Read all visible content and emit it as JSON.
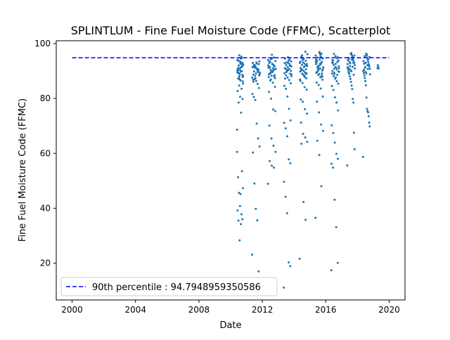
{
  "chart_data": {
    "type": "scatter",
    "title": "SPLINTLUM - Fine Fuel Moisture Code (FFMC), Scatterplot",
    "xlabel": "Date",
    "ylabel": "Fine Fuel Moisture Code (FFMC)",
    "xlim": [
      1999.0,
      2021.0
    ],
    "ylim": [
      6.6,
      101.0
    ],
    "x_ticks": [
      "2000",
      "2004",
      "2008",
      "2012",
      "2016",
      "2020"
    ],
    "y_ticks": [
      "20",
      "40",
      "60",
      "80",
      "100"
    ],
    "grid": false,
    "legend_position": "lower-left",
    "series": [
      {
        "color": "#1f77b4",
        "marker": "dot",
        "seasons": [
          {
            "start": 2010.4,
            "end": 2010.8,
            "values": [
              60.5,
              34.2,
              35.5,
              36.0,
              40.8,
              39.2,
              37.8,
              45.6,
              47.3,
              45.2,
              51.3,
              53.5,
              28.3,
              68.6,
              74.8,
              78.5,
              79.8,
              80.6,
              82.7,
              83.5,
              84.7,
              85.4,
              86.5,
              87.2,
              88.6,
              89.1,
              90.3,
              91.4,
              92.0,
              92.8,
              93.4,
              94.1,
              94.8,
              95.7,
              88.2,
              89.8,
              90.7,
              91.6,
              86.9,
              89.5,
              92.5,
              93.6,
              87.8,
              91.2,
              90.1,
              93.0,
              88.9,
              92.2,
              94.5,
              89.3,
              91.8,
              90.5,
              93.9,
              95.2,
              87.5,
              86.2,
              92.7,
              91.1,
              89.9,
              88.1
            ]
          },
          {
            "start": 2011.35,
            "end": 2011.85,
            "values": [
              23.1,
              17.0,
              35.6,
              39.8,
              49.0,
              60.3,
              62.5,
              65.4,
              70.8,
              79.4,
              80.5,
              81.6,
              83.8,
              85.3,
              86.4,
              87.1,
              88.7,
              89.4,
              90.1,
              90.8,
              91.5,
              92.2,
              92.9,
              93.5,
              89.6,
              90.9,
              88.2,
              91.9,
              87.6,
              92.5,
              90.3,
              89.1,
              91.2,
              86.8,
              88.9,
              90.6,
              92.7,
              87.3,
              89.8,
              91.4,
              88.4,
              90.0,
              93.1,
              92.0,
              86.1
            ]
          },
          {
            "start": 2012.35,
            "end": 2012.85,
            "values": [
              48.9,
              54.8,
              55.5,
              57.2,
              60.5,
              62.8,
              65.4,
              70.1,
              75.4,
              76.0,
              79.9,
              82.4,
              84.2,
              85.7,
              86.9,
              87.8,
              88.5,
              89.6,
              90.4,
              91.2,
              91.9,
              92.6,
              93.3,
              94.0,
              94.9,
              95.9,
              89.1,
              90.8,
              92.1,
              88.3,
              91.5,
              93.6,
              90.2,
              89.7,
              92.9,
              87.4,
              91.0,
              94.3,
              88.8,
              90.6,
              92.4,
              89.3,
              93.8,
              91.7,
              90.0,
              86.5,
              92.0,
              88.0,
              94.6,
              91.3
            ]
          },
          {
            "start": 2013.35,
            "end": 2013.85,
            "values": [
              11.1,
              18.9,
              20.3,
              38.2,
              44.2,
              49.6,
              56.4,
              57.8,
              66.2,
              69.1,
              71.1,
              72.0,
              76.2,
              80.7,
              83.5,
              84.6,
              85.5,
              86.7,
              87.6,
              88.4,
              89.2,
              90.0,
              90.7,
              91.4,
              92.1,
              92.8,
              93.5,
              94.2,
              95.0,
              89.6,
              91.0,
              88.1,
              92.4,
              90.3,
              93.1,
              87.2,
              91.7,
              89.0,
              92.9,
              90.5,
              94.5,
              88.7,
              91.9,
              93.7,
              89.9,
              90.9
            ]
          },
          {
            "start": 2014.35,
            "end": 2014.85,
            "values": [
              21.6,
              35.8,
              42.3,
              63.5,
              64.2,
              65.8,
              67.1,
              71.2,
              74.5,
              76.1,
              78.8,
              79.6,
              83.2,
              84.1,
              85.6,
              86.4,
              87.3,
              88.2,
              89.0,
              89.8,
              90.6,
              91.4,
              92.2,
              92.9,
              93.7,
              94.4,
              95.3,
              96.1,
              97.0,
              88.6,
              90.2,
              91.8,
              89.4,
              93.1,
              90.9,
              92.5,
              87.8,
              94.0,
              91.1,
              89.2,
              92.7,
              90.4,
              93.4,
              88.9,
              91.6,
              95.7,
              86.9,
              92.0,
              90.0,
              94.8
            ]
          },
          {
            "start": 2015.35,
            "end": 2015.85,
            "values": [
              36.5,
              48.0,
              59.4,
              64.6,
              68.2,
              70.5,
              74.9,
              78.8,
              80.7,
              83.6,
              84.9,
              85.8,
              86.8,
              87.7,
              88.5,
              89.3,
              90.1,
              90.9,
              91.7,
              92.5,
              93.3,
              94.1,
              94.9,
              95.6,
              96.3,
              96.9,
              89.8,
              91.3,
              92.9,
              88.9,
              93.7,
              90.6,
              95.1,
              91.9,
              89.5,
              94.5,
              92.3,
              90.3,
              93.0,
              87.9,
              95.9,
              91.0,
              94.2,
              89.1,
              92.6,
              90.8,
              93.5,
              88.3,
              96.5,
              91.5
            ]
          },
          {
            "start": 2016.35,
            "end": 2016.85,
            "values": [
              17.4,
              20.1,
              33.1,
              43.1,
              54.8,
              56.2,
              58.0,
              59.8,
              63.9,
              67.4,
              70.2,
              75.6,
              78.5,
              80.4,
              83.1,
              84.5,
              85.4,
              86.3,
              87.2,
              88.1,
              89.0,
              89.8,
              90.6,
              91.4,
              92.2,
              93.0,
              93.8,
              94.6,
              95.4,
              96.2,
              90.0,
              91.7,
              88.6,
              92.6,
              89.4,
              94.0,
              91.0,
              93.3,
              87.6,
              90.8,
              92.9,
              89.7,
              95.0,
              91.3,
              88.9,
              93.6
            ]
          },
          {
            "start": 2017.35,
            "end": 2017.85,
            "values": [
              55.6,
              61.5,
              67.5,
              78.5,
              79.8,
              83.4,
              84.7,
              86.0,
              87.1,
              88.0,
              88.9,
              89.7,
              90.5,
              91.3,
              92.1,
              92.9,
              93.7,
              94.5,
              95.2,
              95.9,
              96.5,
              90.2,
              91.8,
              93.3,
              89.4,
              94.8,
              92.5,
              90.9,
              95.6,
              88.6,
              93.0,
              91.5,
              94.1,
              89.9,
              96.2,
              92.8,
              90.6,
              94.4,
              91.1,
              93.9
            ]
          },
          {
            "start": 2018.35,
            "end": 2018.8,
            "values": [
              58.7,
              69.8,
              71.2,
              73.5,
              74.9,
              75.4,
              76.2,
              80.3,
              84.8,
              86.3,
              87.4,
              88.3,
              89.2,
              90.0,
              90.8,
              91.6,
              92.4,
              93.2,
              94.0,
              94.8,
              95.6,
              96.3,
              89.6,
              91.2,
              92.8,
              90.4,
              93.6,
              88.8,
              95.1,
              91.9,
              94.3,
              90.7,
              92.1,
              96.0,
              89.1,
              93.0,
              91.4,
              95.4,
              92.6,
              90.2
            ]
          },
          {
            "start": 2019.25,
            "end": 2019.35,
            "values": [
              91.0,
              92.1,
              91.6,
              90.9
            ]
          }
        ]
      }
    ],
    "reference_line": {
      "label": "90th percentile : 94.7948959350586",
      "value": 94.7948959350586,
      "x_range": [
        2000.0,
        2020.0
      ],
      "color": "#0000ff",
      "style": "dashed"
    }
  }
}
